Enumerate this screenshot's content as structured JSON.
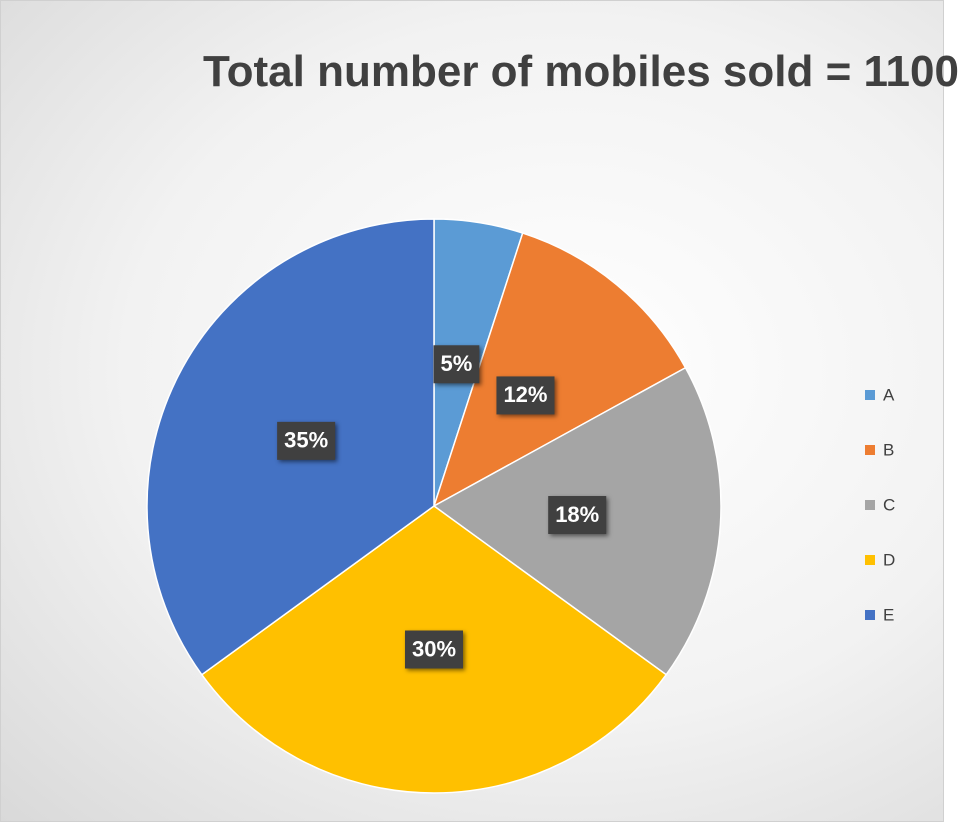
{
  "chart_data": {
    "type": "pie",
    "title": "Total number of mobiles sold = 1100",
    "categories": [
      "A",
      "B",
      "C",
      "D",
      "E"
    ],
    "values": [
      5,
      12,
      18,
      30,
      35
    ],
    "value_labels": [
      "5%",
      "12%",
      "18%",
      "30%",
      "35%"
    ],
    "colors": [
      "#5b9bd5",
      "#ed7d31",
      "#a5a5a5",
      "#ffc000",
      "#4472c4"
    ],
    "legend": "right"
  }
}
